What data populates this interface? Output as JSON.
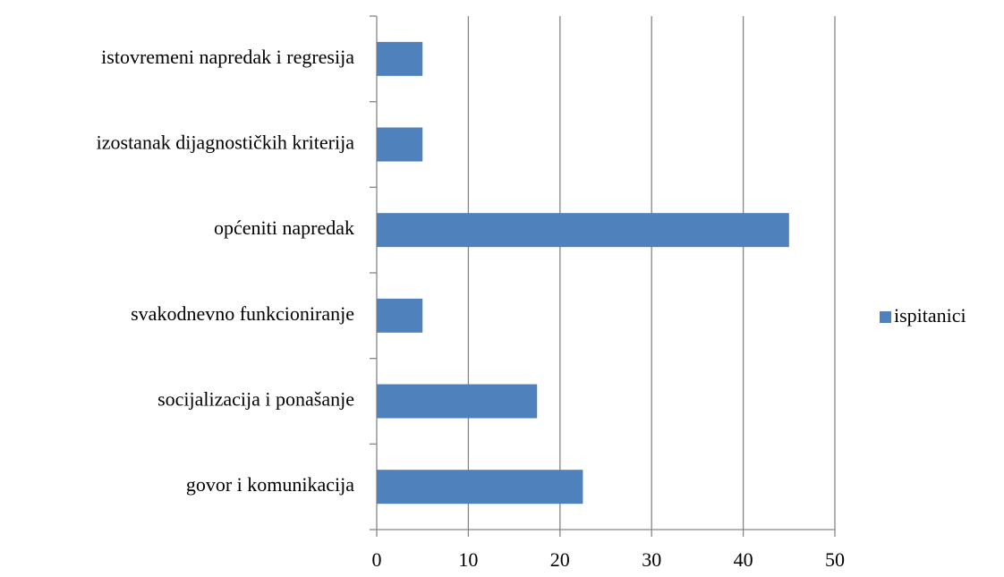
{
  "chart_data": {
    "type": "bar",
    "orientation": "horizontal",
    "categories": [
      "istovremeni napredak i regresija",
      "izostanak dijagnostičkih kriterija",
      "općeniti napredak",
      "svakodnevno funkcioniranje",
      "socijalizacija i ponašanje",
      "govor i komunikacija"
    ],
    "series": [
      {
        "name": "ispitanici",
        "color": "#4f81bd",
        "values": [
          5,
          5,
          45,
          5,
          17.5,
          22.5
        ]
      }
    ],
    "xlim": [
      0,
      50
    ],
    "xticks": [
      0,
      10,
      20,
      30,
      40,
      50
    ],
    "grid": true,
    "legend": "right"
  }
}
